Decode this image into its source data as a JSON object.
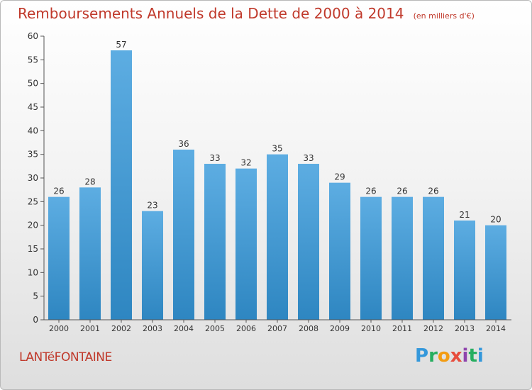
{
  "chart_data": {
    "type": "bar",
    "title": "Remboursements Annuels de la Dette de 2000 à 2014",
    "subtitle": "(en milliers d'€)",
    "categories": [
      "2000",
      "2001",
      "2002",
      "2003",
      "2004",
      "2005",
      "2006",
      "2007",
      "2008",
      "2009",
      "2010",
      "2011",
      "2012",
      "2013",
      "2014"
    ],
    "values": [
      26,
      28,
      57,
      23,
      36,
      33,
      32,
      35,
      33,
      29,
      26,
      26,
      26,
      21,
      20
    ],
    "ylim": [
      0,
      60
    ],
    "yticks": [
      0,
      5,
      10,
      15,
      20,
      25,
      30,
      35,
      40,
      45,
      50,
      55,
      60
    ],
    "xlabel": "",
    "ylabel": "",
    "grid": false,
    "colors": {
      "bar_top": "#5dade2",
      "bar_bottom": "#2e86c1",
      "axis": "#555555",
      "label": "#333333"
    }
  },
  "footer": {
    "location": "LANTéFONTAINE",
    "logo_letters": [
      "P",
      "r",
      "o",
      "x",
      "i",
      "t",
      "i"
    ],
    "logo_colors": [
      "#3498db",
      "#27ae60",
      "#f39c12",
      "#e74c3c",
      "#8e44ad",
      "#27ae60",
      "#3498db"
    ]
  }
}
